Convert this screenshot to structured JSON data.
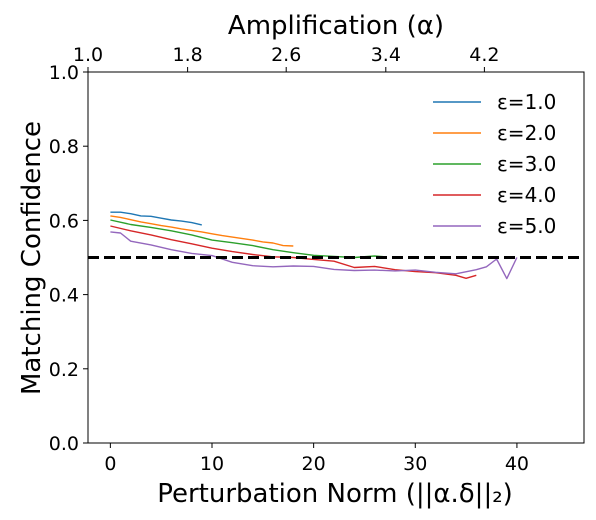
{
  "chart_data": {
    "type": "line",
    "xlabel": "Perturbation Norm (||α.δ||₂)",
    "ylabel": "Matching Confidence",
    "top_xlabel": "Amplification (α)",
    "xlim": [
      -2.2,
      46.6
    ],
    "ylim": [
      0.0,
      1.0
    ],
    "x_ticks": [
      0,
      10,
      20,
      30,
      40
    ],
    "y_ticks": [
      0.0,
      0.2,
      0.4,
      0.6,
      0.8,
      1.0
    ],
    "y_tick_labels": [
      "0.0",
      "0.2",
      "0.4",
      "0.6",
      "0.8",
      "1.0"
    ],
    "top_ticks": [
      1.0,
      1.8,
      2.6,
      3.4,
      4.2
    ],
    "top_tick_labels": [
      "1.0",
      "1.8",
      "2.6",
      "3.4",
      "4.2"
    ],
    "top_tick_positions": [
      -2.2,
      7.6,
      17.3,
      27.1,
      36.8
    ],
    "grid": false,
    "legend_position": "top-right",
    "reference_line": {
      "y": 0.5,
      "style": "dashed",
      "color": "#000000"
    },
    "series": [
      {
        "name": "ε=1.0",
        "color": "#1f77b4",
        "x": [
          0,
          1,
          2,
          3,
          4,
          5,
          6,
          7,
          8,
          9
        ],
        "y": [
          0.622,
          0.622,
          0.618,
          0.612,
          0.611,
          0.606,
          0.601,
          0.598,
          0.594,
          0.588
        ]
      },
      {
        "name": "ε=2.0",
        "color": "#ff7f0e",
        "x": [
          0,
          1,
          2,
          3,
          4,
          5,
          6,
          7,
          8,
          9,
          10,
          11,
          12,
          13,
          14,
          15,
          16,
          17,
          18
        ],
        "y": [
          0.612,
          0.608,
          0.602,
          0.596,
          0.591,
          0.586,
          0.582,
          0.577,
          0.573,
          0.569,
          0.564,
          0.559,
          0.555,
          0.551,
          0.547,
          0.542,
          0.539,
          0.532,
          0.531
        ]
      },
      {
        "name": "ε=3.0",
        "color": "#2ca02c",
        "x": [
          0,
          2,
          4,
          6,
          8,
          10,
          12,
          14,
          16,
          18,
          20,
          22,
          24,
          26,
          27
        ],
        "y": [
          0.601,
          0.589,
          0.581,
          0.572,
          0.561,
          0.547,
          0.54,
          0.532,
          0.521,
          0.513,
          0.506,
          0.503,
          0.5,
          0.504,
          0.502
        ]
      },
      {
        "name": "ε=4.0",
        "color": "#d62728",
        "x": [
          0,
          2,
          4,
          6,
          8,
          10,
          12,
          14,
          16,
          18,
          20,
          22,
          24,
          26,
          28,
          30,
          32,
          34,
          35,
          36
        ],
        "y": [
          0.585,
          0.572,
          0.561,
          0.548,
          0.537,
          0.525,
          0.516,
          0.508,
          0.502,
          0.5,
          0.495,
          0.49,
          0.473,
          0.476,
          0.467,
          0.462,
          0.459,
          0.452,
          0.444,
          0.452
        ]
      },
      {
        "name": "ε=5.0",
        "color": "#9467bd",
        "x": [
          0,
          1,
          2,
          4,
          6,
          8,
          10,
          12,
          14,
          16,
          18,
          20,
          22,
          24,
          26,
          28,
          30,
          32,
          34,
          36,
          37,
          38,
          39,
          40
        ],
        "y": [
          0.569,
          0.566,
          0.544,
          0.534,
          0.521,
          0.511,
          0.505,
          0.487,
          0.478,
          0.475,
          0.477,
          0.476,
          0.468,
          0.465,
          0.466,
          0.464,
          0.466,
          0.46,
          0.456,
          0.467,
          0.475,
          0.496,
          0.443,
          0.5
        ]
      }
    ]
  }
}
